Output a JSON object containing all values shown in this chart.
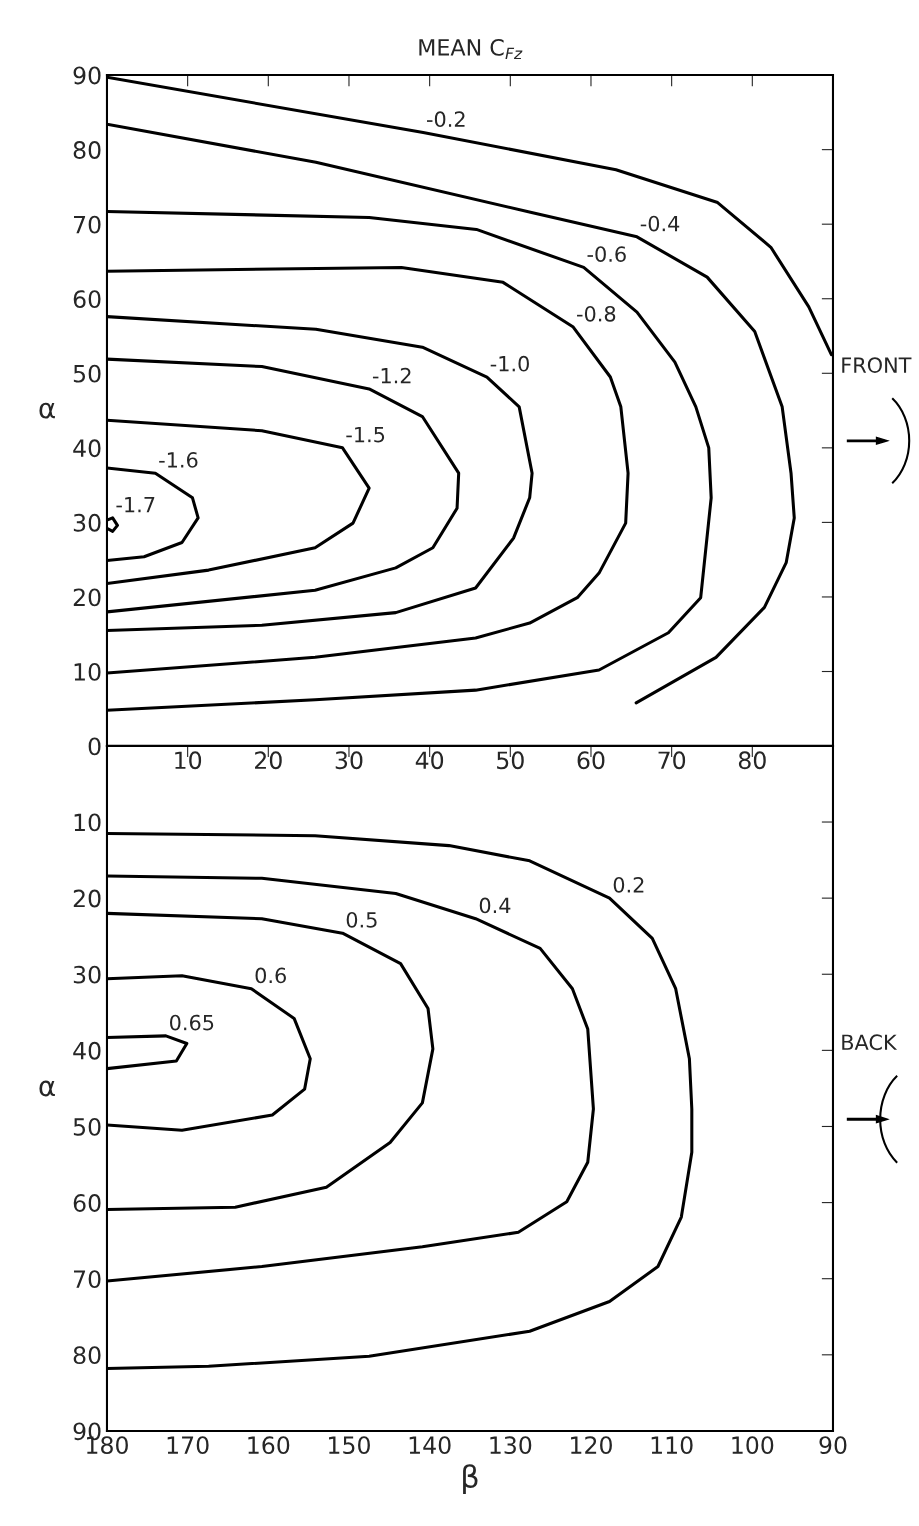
{
  "chart_data": [
    {
      "type": "line",
      "title": "MEAN C$_{Fz}$",
      "ylabel": "α",
      "xlim": [
        0,
        90
      ],
      "ylim": [
        0,
        90
      ],
      "xticks": [
        10,
        20,
        30,
        40,
        50,
        60,
        70,
        80
      ],
      "yticks": [
        0,
        10,
        20,
        30,
        40,
        50,
        60,
        70,
        80,
        90
      ],
      "grid": false,
      "legend": false,
      "marker": "none",
      "line_style": "solid",
      "annotations": [
        "FRONT"
      ],
      "series": [
        {
          "name": "-0.2",
          "color": "#000000",
          "x": [
            0,
            39.2,
            63.1,
            75.7,
            82.3,
            87,
            89.8
          ],
          "values": [
            89.7,
            82.3,
            77.3,
            72.9,
            66.9,
            58.9,
            52.5
          ]
        },
        {
          "name": "-0.4",
          "color": "#000000",
          "x": [
            0,
            25.9,
            52.5,
            65.7,
            74.4,
            80.3,
            83.7,
            84.8,
            85.2,
            84.2,
            81.5,
            75.5,
            65.6
          ],
          "values": [
            83.4,
            78.3,
            71.6,
            68.3,
            62.9,
            55.6,
            45.5,
            36.6,
            30.6,
            24.6,
            18.6,
            11.9,
            5.8
          ]
        },
        {
          "name": "-0.6",
          "color": "#000000",
          "x": [
            0,
            32.5,
            45.8,
            59.1,
            65.7,
            70.4,
            73,
            74.6,
            74.9,
            73.6,
            69.6,
            61,
            45.7,
            25.8,
            0
          ],
          "values": [
            71.7,
            70.9,
            69.3,
            64.2,
            58.2,
            51.5,
            45.5,
            40,
            33.3,
            19.9,
            15.2,
            10.2,
            7.5,
            6.2,
            4.8
          ]
        },
        {
          "name": "-0.8",
          "color": "#000000",
          "x": [
            0,
            36.5,
            49.1,
            57.8,
            62.4,
            63.7,
            64.6,
            64.3,
            61,
            58.3,
            52.4,
            45.7,
            25.8,
            0
          ],
          "values": [
            63.7,
            64.2,
            62.2,
            56.2,
            49.5,
            45.5,
            36.6,
            29.9,
            23.2,
            19.9,
            16.5,
            14.5,
            11.9,
            9.8
          ]
        },
        {
          "name": "-1.0",
          "color": "#000000",
          "x": [
            0,
            25.9,
            39.1,
            47.1,
            51.1,
            52.7,
            52.4,
            50.4,
            45.7,
            35.8,
            19.2,
            0
          ],
          "values": [
            57.6,
            55.9,
            53.5,
            49.5,
            45.5,
            36.6,
            33.3,
            27.9,
            21.2,
            17.9,
            16.2,
            15.5
          ]
        },
        {
          "name": "-1.2",
          "color": "#000000",
          "x": [
            0,
            19.2,
            32.5,
            39.1,
            43.6,
            43.4,
            40.4,
            35.8,
            25.8,
            0
          ],
          "values": [
            51.9,
            50.9,
            47.9,
            44.2,
            36.6,
            31.9,
            26.6,
            23.9,
            20.9,
            18.0
          ]
        },
        {
          "name": "-1.5",
          "color": "#000000",
          "x": [
            0,
            19.2,
            29.2,
            32.5,
            30.5,
            25.8,
            12.6,
            0
          ],
          "values": [
            43.7,
            42.3,
            40,
            34.6,
            29.9,
            26.6,
            23.6,
            21.8
          ]
        },
        {
          "name": "-1.6",
          "color": "#000000",
          "x": [
            0,
            6,
            10.6,
            11.3,
            9.3,
            4.6,
            0
          ],
          "values": [
            37.3,
            36.6,
            33.3,
            30.6,
            27.3,
            25.4,
            24.9
          ]
        },
        {
          "name": "-1.7",
          "color": "#000000",
          "x": [
            0,
            0.7,
            1.3,
            0.7,
            0
          ],
          "values": [
            30.3,
            30.6,
            29.6,
            28.8,
            29.2
          ]
        }
      ]
    },
    {
      "type": "line",
      "xlabel": "β",
      "ylabel": "α",
      "xlim": [
        180,
        90
      ],
      "ylim": [
        90,
        0
      ],
      "xticks": [
        180,
        170,
        160,
        150,
        140,
        130,
        120,
        110,
        100,
        90
      ],
      "yticks": [
        10,
        20,
        30,
        40,
        50,
        60,
        70,
        80,
        90
      ],
      "grid": false,
      "legend": false,
      "marker": "none",
      "line_style": "solid",
      "annotations": [
        "BACK"
      ],
      "series": [
        {
          "name": "0.2",
          "color": "#000000",
          "x": [
            180,
            154.2,
            137.6,
            127.6,
            117.7,
            112.4,
            109.5,
            107.8,
            107.5,
            107.5,
            108.8,
            111.7,
            117.7,
            127.6,
            147.5,
            167.4,
            180
          ],
          "values": [
            11.5,
            11.8,
            13.1,
            15.1,
            20,
            25.3,
            31.9,
            41.1,
            47.7,
            53.4,
            61.9,
            68.4,
            73,
            76.9,
            80.2,
            81.5,
            81.8
          ]
        },
        {
          "name": "0.4",
          "color": "#000000",
          "x": [
            180,
            160.8,
            144.2,
            134.3,
            126.3,
            122.3,
            120.4,
            119.7,
            120.4,
            123,
            129,
            140.9,
            160.8,
            180
          ],
          "values": [
            17.1,
            17.4,
            19.4,
            22.7,
            26.6,
            31.9,
            37.2,
            47.7,
            54.7,
            59.9,
            63.9,
            65.8,
            68.4,
            70.3
          ]
        },
        {
          "name": "0.5",
          "color": "#000000",
          "x": [
            180,
            160.8,
            150.8,
            143.6,
            140.2,
            139.6,
            140.9,
            144.9,
            152.8,
            164.1,
            180
          ],
          "values": [
            22,
            22.7,
            24.6,
            28.6,
            34.5,
            39.8,
            46.9,
            52.1,
            58,
            60.6,
            60.9
          ]
        },
        {
          "name": "0.6",
          "color": "#000000",
          "x": [
            180,
            170.7,
            162.1,
            156.8,
            154.8,
            155.5,
            159.5,
            170.7,
            180
          ],
          "values": [
            30.6,
            30.2,
            31.9,
            35.8,
            41.1,
            45.1,
            48.5,
            50.5,
            49.8
          ]
        },
        {
          "name": "0.65",
          "color": "#000000",
          "x": [
            180,
            172.7,
            170.1,
            171.4,
            180
          ],
          "values": [
            38.3,
            38.1,
            39.1,
            41.4,
            42.4
          ]
        }
      ]
    }
  ]
}
